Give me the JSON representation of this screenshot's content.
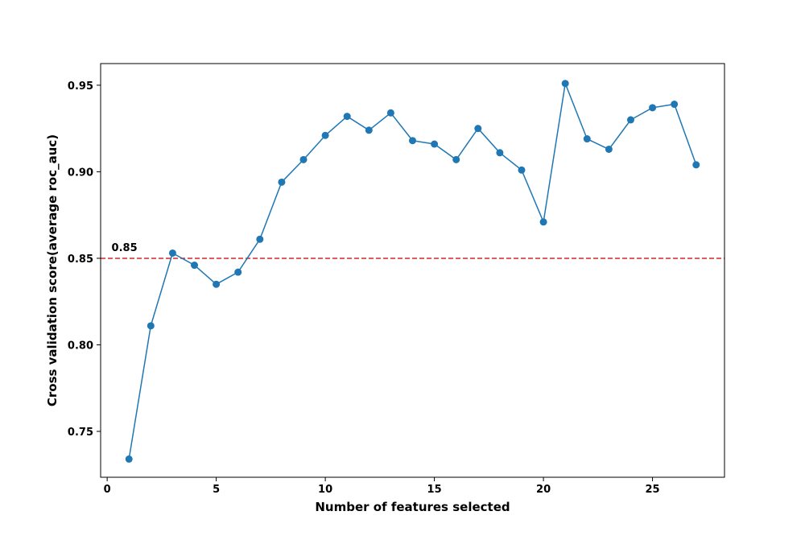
{
  "chart_data": {
    "type": "line",
    "title": "",
    "xlabel": "Number of features selected",
    "ylabel": "Cross validation score(average roc_auc)",
    "xlim": [
      -0.3,
      28.3
    ],
    "ylim": [
      0.7235,
      0.9625
    ],
    "xticks": [
      0,
      5,
      10,
      15,
      20,
      25
    ],
    "yticks": [
      0.75,
      0.8,
      0.85,
      0.9,
      0.95
    ],
    "xtick_labels": [
      "0",
      "5",
      "10",
      "15",
      "20",
      "25"
    ],
    "ytick_labels": [
      "0.75",
      "0.80",
      "0.85",
      "0.90",
      "0.95"
    ],
    "grid": false,
    "series": [
      {
        "color": "#1f77b4",
        "marker": "circle",
        "x": [
          1,
          2,
          3,
          4,
          5,
          6,
          7,
          8,
          9,
          10,
          11,
          12,
          13,
          14,
          15,
          16,
          17,
          18,
          19,
          20,
          21,
          22,
          23,
          24,
          25,
          26,
          27
        ],
        "y": [
          0.734,
          0.811,
          0.853,
          0.846,
          0.835,
          0.842,
          0.861,
          0.894,
          0.907,
          0.921,
          0.932,
          0.924,
          0.934,
          0.918,
          0.916,
          0.907,
          0.925,
          0.911,
          0.901,
          0.871,
          0.951,
          0.919,
          0.913,
          0.93,
          0.937,
          0.939,
          0.904
        ]
      }
    ],
    "reference_line": {
      "y": 0.85,
      "color": "#d62728",
      "style": "dashed",
      "label": "0.85",
      "label_x": 0.2
    }
  }
}
